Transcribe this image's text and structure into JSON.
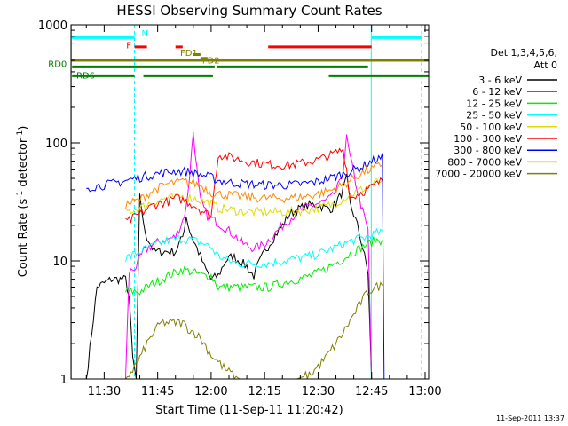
{
  "chart_data": {
    "type": "line",
    "title": "HESSI Observing Summary Count Rates",
    "xlabel": "Start Time (11-Sep-11 11:20:42)",
    "ylabel_main": "Count Rate (s",
    "ylabel_sup1": "-1",
    "ylabel_mid": " detector",
    "ylabel_sup2": "-1",
    "ylabel_end": ")",
    "y_scale": "log",
    "ylim": [
      1,
      1000
    ],
    "xlim_minutes": [
      20.7,
      121
    ],
    "x_ticks": [
      {
        "minute": 30,
        "label": "11:30"
      },
      {
        "minute": 45,
        "label": "11:45"
      },
      {
        "minute": 60,
        "label": "12:00"
      },
      {
        "minute": 75,
        "label": "12:15"
      },
      {
        "minute": 90,
        "label": "12:30"
      },
      {
        "minute": 105,
        "label": "12:45"
      },
      {
        "minute": 120,
        "label": "13:00"
      }
    ],
    "y_ticks": [
      {
        "value": 1,
        "label": "1"
      },
      {
        "value": 10,
        "label": "10"
      },
      {
        "value": 100,
        "label": "100"
      },
      {
        "value": 1000,
        "label": "1000"
      }
    ],
    "legend": {
      "header1": "Det 1,3,4,5,6,",
      "header2": "Att 0",
      "placement": "right",
      "entries": [
        {
          "label": "3 - 6 keV",
          "color": "#000000"
        },
        {
          "label": "6 - 12 keV",
          "color": "#ff00ff"
        },
        {
          "label": "12 - 25 keV",
          "color": "#00ee00"
        },
        {
          "label": "25 - 50 keV",
          "color": "#00ffff"
        },
        {
          "label": "50 - 100 keV",
          "color": "#dddd00"
        },
        {
          "label": "100 - 300 keV",
          "color": "#ff0000"
        },
        {
          "label": "300 - 800 keV",
          "color": "#0000ff"
        },
        {
          "label": "800 - 7000 keV",
          "color": "#ff8800"
        },
        {
          "label": "7000 - 20000 keV",
          "color": "#808000"
        }
      ]
    },
    "flag_labels": {
      "N": "N",
      "F": "F",
      "FD1": "FD1",
      "FD2": "FD2",
      "RD0": "RD0",
      "RD6": "RD6"
    },
    "flags": [
      {
        "label": "N",
        "color": "#00ffff",
        "value": 780,
        "segments": [
          [
            20.7,
            38.5
          ],
          [
            105,
            119
          ]
        ]
      },
      {
        "label": "F",
        "color": "#ff0000",
        "value": 650,
        "segments": [
          [
            38.5,
            42
          ],
          [
            50,
            52
          ],
          [
            76,
            105
          ]
        ]
      },
      {
        "label": "FD1",
        "color": "#808000",
        "value": 560,
        "segments": [
          [
            55,
            57
          ]
        ]
      },
      {
        "label": "FD2",
        "color": "#808000",
        "value": 520,
        "segments": [
          [
            57,
            59
          ]
        ]
      },
      {
        "label": "RD0_line",
        "color": "#808000",
        "value": 500,
        "segments": [
          [
            20.7,
            121
          ]
        ]
      },
      {
        "label": "RD0",
        "color": "#008000",
        "value": 440,
        "segments": [
          [
            21,
            61
          ],
          [
            61.5,
            104
          ]
        ]
      },
      {
        "label": "RD6",
        "color": "#008000",
        "value": 370,
        "segments": [
          [
            21,
            38.5
          ],
          [
            41,
            60.5
          ],
          [
            93,
            121
          ]
        ]
      }
    ],
    "vlines": [
      {
        "minute": 20.8,
        "color": "#00ffff",
        "style": "solid"
      },
      {
        "minute": 38.5,
        "color": "#00ffff",
        "style": "dashed"
      },
      {
        "minute": 104.9,
        "color": "#00ffff",
        "style": "solid"
      },
      {
        "minute": 119.0,
        "color": "#00ffff",
        "style": "dashed"
      }
    ],
    "series": [
      {
        "name": "3 - 6 keV",
        "color": "#000000",
        "points": [
          [
            25,
            1
          ],
          [
            28,
            6
          ],
          [
            32,
            7
          ],
          [
            36,
            7
          ],
          [
            37,
            5
          ],
          [
            38,
            1.5
          ],
          [
            39,
            1
          ],
          [
            39.5,
            6.5
          ],
          [
            40,
            38
          ],
          [
            41,
            20
          ],
          [
            42,
            16
          ],
          [
            44,
            12
          ],
          [
            46,
            12
          ],
          [
            48,
            12
          ],
          [
            50,
            12
          ],
          [
            52,
            16
          ],
          [
            53,
            24
          ],
          [
            54,
            18
          ],
          [
            55,
            15
          ],
          [
            57,
            11
          ],
          [
            58,
            9
          ],
          [
            60,
            7
          ],
          [
            62,
            7.5
          ],
          [
            64,
            10
          ],
          [
            66,
            11
          ],
          [
            68,
            10
          ],
          [
            70,
            9
          ],
          [
            71,
            8
          ],
          [
            72,
            7.5
          ],
          [
            73,
            9
          ],
          [
            75,
            12
          ],
          [
            77,
            15
          ],
          [
            80,
            20
          ],
          [
            82,
            25
          ],
          [
            85,
            28
          ],
          [
            88,
            30
          ],
          [
            90,
            30
          ],
          [
            92,
            28
          ],
          [
            94,
            28
          ],
          [
            96,
            35
          ],
          [
            97,
            40
          ],
          [
            98,
            50
          ],
          [
            99,
            30
          ],
          [
            100,
            25
          ],
          [
            101,
            20
          ],
          [
            102,
            15
          ],
          [
            104,
            8
          ],
          [
            105,
            1
          ]
        ]
      },
      {
        "name": "6 - 12 keV",
        "color": "#ff00ff",
        "points": [
          [
            36,
            1
          ],
          [
            37,
            8
          ],
          [
            39,
            9
          ],
          [
            41,
            12
          ],
          [
            44,
            14
          ],
          [
            47,
            15
          ],
          [
            50,
            16
          ],
          [
            52,
            22
          ],
          [
            53,
            28
          ],
          [
            54,
            55
          ],
          [
            55,
            125
          ],
          [
            56,
            60
          ],
          [
            57,
            32
          ],
          [
            59,
            24
          ],
          [
            61,
            22
          ],
          [
            63,
            20
          ],
          [
            65,
            18
          ],
          [
            67,
            16
          ],
          [
            69,
            14
          ],
          [
            71,
            13
          ],
          [
            73,
            13
          ],
          [
            75,
            14
          ],
          [
            77,
            16
          ],
          [
            80,
            20
          ],
          [
            83,
            24
          ],
          [
            86,
            28
          ],
          [
            89,
            30
          ],
          [
            92,
            32
          ],
          [
            94,
            35
          ],
          [
            96,
            45
          ],
          [
            97,
            60
          ],
          [
            98,
            110
          ],
          [
            99,
            75
          ],
          [
            100,
            55
          ],
          [
            101,
            40
          ],
          [
            102,
            30
          ],
          [
            104,
            18
          ],
          [
            105,
            1
          ]
        ]
      },
      {
        "name": "12 - 25 keV",
        "color": "#00ee00",
        "points": [
          [
            36,
            5.5
          ],
          [
            40,
            5.5
          ],
          [
            44,
            6.5
          ],
          [
            48,
            7.5
          ],
          [
            52,
            8.5
          ],
          [
            55,
            8
          ],
          [
            58,
            7.5
          ],
          [
            60,
            7.5
          ],
          [
            62,
            6
          ],
          [
            65,
            6
          ],
          [
            68,
            6
          ],
          [
            72,
            6
          ],
          [
            76,
            6
          ],
          [
            80,
            6.5
          ],
          [
            84,
            7
          ],
          [
            88,
            7.5
          ],
          [
            92,
            8.5
          ],
          [
            96,
            10
          ],
          [
            100,
            12
          ],
          [
            104,
            14
          ],
          [
            106,
            15
          ],
          [
            108,
            15
          ]
        ]
      },
      {
        "name": "25 - 50 keV",
        "color": "#00ffff",
        "points": [
          [
            36,
            10.5
          ],
          [
            40,
            12
          ],
          [
            44,
            13.5
          ],
          [
            48,
            15
          ],
          [
            52,
            15.5
          ],
          [
            55,
            15
          ],
          [
            58,
            14
          ],
          [
            60,
            13
          ],
          [
            62,
            11
          ],
          [
            65,
            10
          ],
          [
            68,
            9.5
          ],
          [
            72,
            9.5
          ],
          [
            76,
            9.5
          ],
          [
            80,
            10
          ],
          [
            84,
            10.5
          ],
          [
            88,
            11
          ],
          [
            92,
            12
          ],
          [
            96,
            13.5
          ],
          [
            100,
            15
          ],
          [
            104,
            16
          ],
          [
            106,
            17
          ],
          [
            108,
            18
          ]
        ]
      },
      {
        "name": "50 - 100 keV",
        "color": "#dddd00",
        "points": [
          [
            36,
            26
          ],
          [
            40,
            28
          ],
          [
            44,
            32
          ],
          [
            48,
            34
          ],
          [
            52,
            35
          ],
          [
            55,
            34
          ],
          [
            58,
            32
          ],
          [
            60,
            31
          ],
          [
            62,
            28
          ],
          [
            66,
            27
          ],
          [
            70,
            26
          ],
          [
            74,
            26
          ],
          [
            78,
            26
          ],
          [
            82,
            26
          ],
          [
            86,
            27
          ],
          [
            90,
            28
          ],
          [
            94,
            30
          ],
          [
            98,
            35
          ],
          [
            102,
            40
          ],
          [
            106,
            46
          ],
          [
            108,
            48
          ]
        ]
      },
      {
        "name": "100 - 300 keV",
        "color": "#ff0000",
        "points": [
          [
            36,
            21
          ],
          [
            40,
            25
          ],
          [
            44,
            30
          ],
          [
            48,
            32
          ],
          [
            50,
            34
          ],
          [
            52,
            33
          ],
          [
            55,
            30
          ],
          [
            58,
            26
          ],
          [
            60,
            24
          ],
          [
            62,
            80
          ],
          [
            66,
            75
          ],
          [
            70,
            70
          ],
          [
            74,
            67
          ],
          [
            78,
            65
          ],
          [
            82,
            65
          ],
          [
            86,
            68
          ],
          [
            90,
            72
          ],
          [
            94,
            80
          ],
          [
            97,
            88
          ],
          [
            98,
            60
          ],
          [
            99,
            34
          ],
          [
            102,
            38
          ],
          [
            105,
            42
          ],
          [
            108,
            48
          ]
        ]
      },
      {
        "name": "300 - 800 keV",
        "color": "#0000ff",
        "points": [
          [
            25,
            42
          ],
          [
            30,
            44
          ],
          [
            35,
            47
          ],
          [
            40,
            51
          ],
          [
            45,
            55
          ],
          [
            50,
            58
          ],
          [
            54,
            57
          ],
          [
            58,
            53
          ],
          [
            60,
            51
          ],
          [
            62,
            48
          ],
          [
            66,
            46
          ],
          [
            70,
            45
          ],
          [
            74,
            44
          ],
          [
            78,
            44
          ],
          [
            82,
            44
          ],
          [
            86,
            45
          ],
          [
            90,
            47
          ],
          [
            94,
            51
          ],
          [
            98,
            56
          ],
          [
            102,
            62
          ],
          [
            105,
            70
          ],
          [
            108,
            75
          ],
          [
            108.5,
            1
          ]
        ]
      },
      {
        "name": "800 - 7000 keV",
        "color": "#ff8800",
        "points": [
          [
            36,
            30
          ],
          [
            40,
            33
          ],
          [
            44,
            40
          ],
          [
            48,
            45
          ],
          [
            52,
            47
          ],
          [
            55,
            46
          ],
          [
            58,
            42
          ],
          [
            60,
            38
          ],
          [
            62,
            37
          ],
          [
            66,
            36
          ],
          [
            70,
            35
          ],
          [
            74,
            34
          ],
          [
            78,
            34
          ],
          [
            82,
            34
          ],
          [
            86,
            35
          ],
          [
            90,
            37
          ],
          [
            94,
            40
          ],
          [
            98,
            46
          ],
          [
            102,
            55
          ],
          [
            106,
            62
          ],
          [
            108,
            65
          ]
        ]
      },
      {
        "name": "7000 - 20000 keV",
        "color": "#808000",
        "points": [
          [
            36,
            1
          ],
          [
            38,
            1.2
          ],
          [
            40,
            1.5
          ],
          [
            42,
            2
          ],
          [
            44,
            2.5
          ],
          [
            46,
            3
          ],
          [
            48,
            3
          ],
          [
            50,
            3
          ],
          [
            52,
            3
          ],
          [
            54,
            2.6
          ],
          [
            56,
            2.4
          ],
          [
            58,
            2
          ],
          [
            60,
            1.6
          ],
          [
            62,
            1.4
          ],
          [
            64,
            1.2
          ],
          [
            66,
            1.1
          ],
          [
            68,
            1
          ],
          [
            72,
            1
          ],
          [
            76,
            1
          ],
          [
            80,
            1
          ],
          [
            84,
            1
          ],
          [
            88,
            1.1
          ],
          [
            92,
            1.5
          ],
          [
            96,
            2.2
          ],
          [
            100,
            3.5
          ],
          [
            102,
            4.5
          ],
          [
            104,
            5.5
          ],
          [
            106,
            6
          ],
          [
            108,
            6.2
          ]
        ]
      }
    ],
    "timestamp": "11-Sep-2011 13:37"
  }
}
